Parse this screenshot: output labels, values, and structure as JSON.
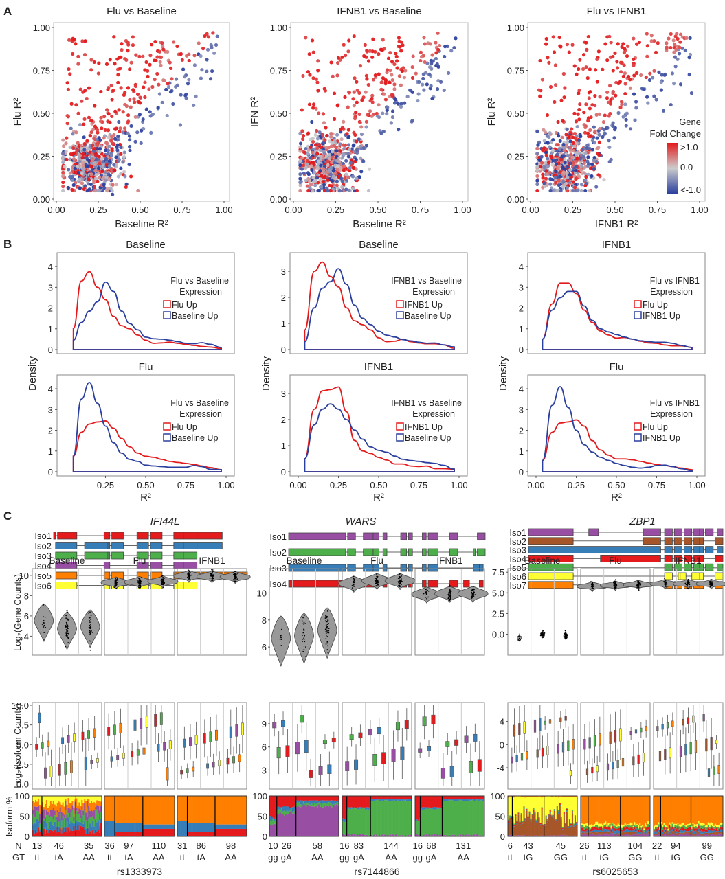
{
  "panel_labels": {
    "a": "A",
    "b": "B",
    "c": "C"
  },
  "colors": {
    "red": "#e41a1c",
    "blue": "#377eb8",
    "green": "#4daf4a",
    "purple": "#984ea3",
    "orange": "#ff7f00",
    "yellow": "#ffff33",
    "brown": "#a65628",
    "up_red": "#e31a1c",
    "up_blue": "#2b3f9e",
    "scale_high": "#e31a1c",
    "scale_mid": "#cccccc",
    "scale_low": "#2b3f9e",
    "frame": "#888888",
    "violin": "#999999"
  },
  "chart_data": [
    {
      "id": "A1",
      "type": "scatter",
      "title": "Flu vs Baseline",
      "xlabel": "Baseline R²",
      "ylabel": "Flu R²",
      "xlim": [
        0,
        1
      ],
      "ylim": [
        0,
        1
      ],
      "xticks": [
        "0.00",
        "0.25",
        "0.50",
        "0.75",
        "1.00"
      ],
      "yticks": [
        "0.00",
        "0.25",
        "0.50",
        "0.75",
        "1.00"
      ],
      "color_by": "Gene Fold Change",
      "n_points_approx": 900,
      "description": "dense cluster near (0.05-0.45, 0.05-0.45); red points spread high on y; diagonal trend to (0.97,0.97)"
    },
    {
      "id": "A2",
      "type": "scatter",
      "title": "IFNB1 vs Baseline",
      "xlabel": "Baseline R²",
      "ylabel": "IFN R²",
      "xlim": [
        0,
        1
      ],
      "ylim": [
        0,
        1
      ],
      "xticks": [
        "0.00",
        "0.25",
        "0.50",
        "0.75",
        "1.00"
      ],
      "yticks": [
        "0.00",
        "0.25",
        "0.50",
        "0.75",
        "1.00"
      ],
      "color_by": "Gene Fold Change",
      "n_points_approx": 900
    },
    {
      "id": "A3",
      "type": "scatter",
      "title": "Flu vs IFNB1",
      "xlabel": "IFNB1 R²",
      "ylabel": "Flu R²",
      "xlim": [
        0,
        1
      ],
      "ylim": [
        0,
        1
      ],
      "xticks": [
        "0.00",
        "0.25",
        "0.50",
        "0.75",
        "1.00"
      ],
      "yticks": [
        "0.00",
        "0.25",
        "0.50",
        "0.75",
        "1.00"
      ],
      "color_by": "Gene Fold Change",
      "n_points_approx": 900,
      "legend": {
        "title": [
          "Gene",
          "Fold Change"
        ],
        "labels": [
          ">1.0",
          "0.0",
          "<-1.0"
        ],
        "position": "bottom-right"
      }
    },
    {
      "id": "B",
      "type": "line",
      "ylabel": "Density",
      "xlabel": "R²",
      "panels": [
        {
          "title": "Baseline",
          "legend_title": [
            "Flu vs Baseline",
            "Expression"
          ],
          "legend": [
            "Flu Up",
            "Baseline Up"
          ],
          "yticks": [
            "0",
            "1",
            "2",
            "3",
            "4"
          ],
          "ylim": [
            0,
            4.4
          ],
          "xlim": [
            0,
            1
          ],
          "x": [
            0.05,
            0.1,
            0.15,
            0.2,
            0.25,
            0.3,
            0.35,
            0.4,
            0.45,
            0.5,
            0.55,
            0.6,
            0.65,
            0.7,
            0.75,
            0.8,
            0.85,
            0.9,
            0.97
          ],
          "series": [
            {
              "name": "Flu Up",
              "color": "red",
              "values": [
                1.0,
                3.3,
                3.75,
                3.0,
                2.4,
                1.6,
                1.15,
                1.0,
                0.7,
                0.45,
                0.3,
                0.32,
                0.36,
                0.3,
                0.25,
                0.2,
                0.15,
                0.12,
                0.05
              ]
            },
            {
              "name": "Baseline Up",
              "color": "blue",
              "values": [
                0.45,
                1.3,
                1.85,
                2.3,
                3.25,
                2.8,
                1.85,
                1.25,
                0.95,
                0.6,
                0.52,
                0.5,
                0.45,
                0.38,
                0.3,
                0.28,
                0.33,
                0.25,
                0.1
              ]
            }
          ]
        },
        {
          "title": "Flu",
          "legend_title": [
            "Flu vs Baseline",
            "Expression"
          ],
          "legend": [
            "Flu Up",
            "Baseline Up"
          ],
          "yticks": [
            "0",
            "1",
            "2",
            "3",
            "4"
          ],
          "ylim": [
            0,
            4.4
          ],
          "xlim": [
            0,
            1
          ],
          "xticks": [
            "0.25",
            "0.50",
            "0.75",
            "1.00"
          ],
          "x": [
            0.05,
            0.1,
            0.15,
            0.2,
            0.25,
            0.3,
            0.35,
            0.4,
            0.45,
            0.5,
            0.55,
            0.6,
            0.65,
            0.7,
            0.75,
            0.8,
            0.85,
            0.9,
            0.97
          ],
          "series": [
            {
              "name": "Flu Up",
              "color": "red",
              "values": [
                0.75,
                1.9,
                2.3,
                2.4,
                2.45,
                2.1,
                1.6,
                1.2,
                0.9,
                0.75,
                0.7,
                0.6,
                0.5,
                0.45,
                0.4,
                0.35,
                0.28,
                0.2,
                0.1
              ]
            },
            {
              "name": "Baseline Up",
              "color": "blue",
              "values": [
                0.75,
                3.5,
                4.3,
                3.3,
                2.2,
                1.4,
                0.9,
                0.6,
                0.5,
                0.32,
                0.28,
                0.25,
                0.22,
                0.22,
                0.22,
                0.3,
                0.25,
                0.12,
                0.1
              ]
            }
          ]
        },
        {
          "title": "Baseline",
          "legend_title": [
            "IFNB1 vs Baseline",
            "Expression"
          ],
          "legend": [
            "IFNB1 Up",
            "Baseline Up"
          ],
          "yticks": [
            "0",
            "1",
            "2",
            "3"
          ],
          "ylim": [
            0,
            3.5
          ],
          "xlim": [
            0,
            1
          ],
          "x": [
            0.04,
            0.1,
            0.15,
            0.2,
            0.25,
            0.3,
            0.35,
            0.4,
            0.45,
            0.5,
            0.55,
            0.6,
            0.65,
            0.7,
            0.75,
            0.8,
            0.85,
            0.9,
            0.97
          ],
          "series": [
            {
              "name": "IFNB1 Up",
              "color": "red",
              "values": [
                0.75,
                3.0,
                3.35,
                2.8,
                2.4,
                1.6,
                1.1,
                0.95,
                0.75,
                0.45,
                0.3,
                0.32,
                0.4,
                0.3,
                0.25,
                0.22,
                0.22,
                0.18,
                0.05
              ]
            },
            {
              "name": "Baseline Up",
              "color": "blue",
              "values": [
                0.3,
                1.6,
                2.35,
                2.6,
                3.1,
                2.5,
                1.7,
                1.2,
                0.95,
                0.7,
                0.55,
                0.48,
                0.38,
                0.33,
                0.28,
                0.24,
                0.25,
                0.18,
                0.1
              ]
            }
          ]
        },
        {
          "title": "IFNB1",
          "legend_title": [
            "IFNB1 vs Baseline",
            "Expression"
          ],
          "legend": [
            "IFNB1 Up",
            "Baseline Up"
          ],
          "yticks": [
            "0",
            "1",
            "2",
            "3"
          ],
          "ylim": [
            0,
            3.5
          ],
          "xlim": [
            0,
            1
          ],
          "xticks": [
            "0.00",
            "0.25",
            "0.50",
            "0.75",
            "1.00"
          ],
          "x": [
            0.04,
            0.1,
            0.15,
            0.2,
            0.25,
            0.3,
            0.35,
            0.4,
            0.45,
            0.5,
            0.55,
            0.6,
            0.65,
            0.7,
            0.75,
            0.8,
            0.85,
            0.9,
            0.97
          ],
          "series": [
            {
              "name": "IFNB1 Up",
              "color": "red",
              "values": [
                0.5,
                2.4,
                3.1,
                3.15,
                3.25,
                2.3,
                1.2,
                0.8,
                0.7,
                0.55,
                0.45,
                0.3,
                0.3,
                0.22,
                0.2,
                0.22,
                0.12,
                0.12,
                0.1
              ]
            },
            {
              "name": "Baseline Up",
              "color": "blue",
              "values": [
                0.5,
                1.8,
                2.4,
                2.6,
                2.4,
                2.0,
                1.6,
                1.25,
                0.95,
                0.82,
                0.75,
                0.6,
                0.48,
                0.43,
                0.4,
                0.35,
                0.32,
                0.25,
                0.1
              ]
            }
          ]
        },
        {
          "title": "IFNB1",
          "legend_title": [
            "Flu vs IFNB1",
            "Expression"
          ],
          "legend": [
            "Flu Up",
            "IFNB1 Up"
          ],
          "yticks": [
            "0",
            "1",
            "2",
            "3",
            "4"
          ],
          "ylim": [
            0,
            4.4
          ],
          "xlim": [
            0,
            1
          ],
          "x": [
            0.04,
            0.1,
            0.15,
            0.2,
            0.25,
            0.3,
            0.35,
            0.4,
            0.45,
            0.5,
            0.55,
            0.6,
            0.65,
            0.7,
            0.75,
            0.8,
            0.85,
            0.9,
            0.97
          ],
          "series": [
            {
              "name": "Flu Up",
              "color": "red",
              "values": [
                0.5,
                2.2,
                3.2,
                3.2,
                2.7,
                1.9,
                1.3,
                0.9,
                0.7,
                0.55,
                0.58,
                0.5,
                0.4,
                0.32,
                0.3,
                0.22,
                0.18,
                0.18,
                0.1
              ]
            },
            {
              "name": "IFNB1 Up",
              "color": "blue",
              "values": [
                0.5,
                1.9,
                2.5,
                2.8,
                2.8,
                2.1,
                1.4,
                1.0,
                0.85,
                0.72,
                0.6,
                0.5,
                0.42,
                0.38,
                0.35,
                0.35,
                0.3,
                0.2,
                0.1
              ]
            }
          ]
        },
        {
          "title": "Flu",
          "legend_title": [
            "Flu vs IFNB1",
            "Expression"
          ],
          "legend": [
            "Flu Up",
            "IFNB1 Up"
          ],
          "yticks": [
            "0",
            "1",
            "2",
            "3",
            "4"
          ],
          "ylim": [
            0,
            4.4
          ],
          "xlim": [
            0,
            1
          ],
          "xticks": [
            "0.00",
            "0.25",
            "0.50",
            "0.75",
            "1.00"
          ],
          "x": [
            0.04,
            0.1,
            0.15,
            0.2,
            0.25,
            0.3,
            0.35,
            0.4,
            0.45,
            0.5,
            0.55,
            0.6,
            0.65,
            0.7,
            0.75,
            0.8,
            0.85,
            0.9,
            0.97
          ],
          "series": [
            {
              "name": "Flu Up",
              "color": "red",
              "values": [
                0.55,
                1.9,
                2.35,
                2.4,
                2.5,
                2.2,
                1.5,
                1.05,
                0.8,
                0.62,
                0.62,
                0.58,
                0.5,
                0.42,
                0.35,
                0.3,
                0.25,
                0.18,
                0.1
              ]
            },
            {
              "name": "IFNB1 Up",
              "color": "blue",
              "values": [
                0.55,
                3.2,
                4.1,
                3.1,
                2.0,
                1.3,
                0.95,
                0.7,
                0.55,
                0.4,
                0.3,
                0.22,
                0.18,
                0.22,
                0.3,
                0.32,
                0.25,
                0.15,
                0.05
              ]
            }
          ]
        }
      ]
    },
    {
      "id": "C",
      "type": "table",
      "genes": [
        {
          "name": "IFI44L",
          "snp": "rs1333973",
          "isoforms": [
            "Iso1",
            "Iso2",
            "Iso3",
            "Iso4",
            "Iso5",
            "Iso6"
          ],
          "isoform_colors": [
            "red",
            "blue",
            "green",
            "purple",
            "orange",
            "yellow"
          ],
          "conditions": [
            "Baseline",
            "Flu",
            "IFNB1"
          ],
          "gene_yticks": [
            "4",
            "6",
            "8",
            "10"
          ],
          "gene_ylim": [
            2.4,
            10.4
          ],
          "iso_yticks": [
            "0.0",
            "2.5",
            "5.0",
            "7.5",
            "10.0"
          ],
          "iso_ylim": [
            -0.3,
            10.0
          ],
          "genotypes": [
            "tt",
            "tA",
            "AA"
          ],
          "N": [
            [
              13,
              46,
              35
            ],
            [
              36,
              97,
              110
            ],
            [
              31,
              86,
              98
            ]
          ],
          "gene_violin_medians": [
            [
              5.5,
              4.7,
              4.9
            ],
            [
              9.3,
              9.35,
              9.4
            ],
            [
              9.95,
              9.9,
              9.85
            ]
          ]
        },
        {
          "name": "WARS",
          "snp": "rs7144866",
          "isoforms": [
            "Iso1",
            "Iso2",
            "Iso3",
            "Iso4"
          ],
          "isoform_colors": [
            "purple",
            "green",
            "blue",
            "red"
          ],
          "conditions": [
            "Baseline",
            "Flu",
            "IFNB1"
          ],
          "gene_yticks": [
            "6",
            "8",
            "10"
          ],
          "gene_ylim": [
            5.6,
            11.6
          ],
          "iso_yticks": [
            "3",
            "6",
            "9"
          ],
          "iso_ylim": [
            0.9,
            11.4
          ],
          "genotypes": [
            "gg",
            "gA",
            "AA"
          ],
          "N": [
            [
              10,
              26,
              58
            ],
            [
              16,
              83,
              144
            ],
            [
              16,
              68,
              131
            ]
          ],
          "gene_violin_medians": [
            [
              6.6,
              6.8,
              7.2
            ],
            [
              10.7,
              10.9,
              10.9
            ],
            [
              9.9,
              9.95,
              9.95
            ]
          ]
        },
        {
          "name": "ZBP1",
          "snp": "rs6025653",
          "isoforms": [
            "Iso1",
            "Iso2",
            "Iso3",
            "Iso4",
            "Iso5",
            "Iso6",
            "Iso7"
          ],
          "isoform_colors": [
            "purple",
            "brown",
            "blue",
            "red",
            "green",
            "yellow",
            "orange"
          ],
          "conditions": [
            "Baseline",
            "Flu",
            "IFNB1"
          ],
          "gene_yticks": [
            "0.0",
            "2.5",
            "5.0",
            "7.5"
          ],
          "gene_ylim": [
            -2.2,
            7.6
          ],
          "iso_yticks": [
            "-4",
            "0",
            "4"
          ],
          "iso_ylim": [
            -7.2,
            6.8
          ],
          "genotypes": [
            "tt",
            "tG",
            "GG"
          ],
          "N": [
            [
              6,
              43,
              45
            ],
            [
              26,
              113,
              104
            ],
            [
              22,
              94,
              99
            ]
          ],
          "gene_violin_medians": [
            [
              -0.4,
              0.0,
              -0.2
            ],
            [
              5.8,
              5.9,
              6.0
            ],
            [
              6.1,
              6.1,
              6.1
            ]
          ]
        }
      ],
      "gene_ylabel": "Log₂(Gene Counts)",
      "iso_ylabel": "Log₂(Isoform Counts)",
      "pct_ylabel": "Isoform %",
      "pct_yticks": [
        "0",
        "50",
        "100"
      ],
      "row_labels": {
        "n": "N",
        "gt": "GT"
      }
    }
  ]
}
